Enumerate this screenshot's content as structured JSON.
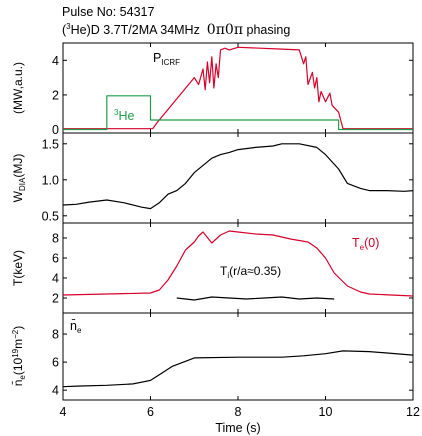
{
  "header": {
    "pulse_line": "Pulse No: 54317",
    "scenario_prefix": "(",
    "scenario_iso": "3",
    "scenario_rest": "He)D 3.7T/2MA 34MHz",
    "phasing_symbols": "0π0π",
    "phasing_word": "phasing"
  },
  "colors": {
    "red": "#d6002b",
    "green": "#1f9e4a",
    "black": "#000000"
  },
  "chart_data": [
    {
      "type": "line",
      "panel": "power",
      "ylabel": "(MW,a.u.)",
      "ylim": [
        -0.2,
        5.0
      ],
      "yticks": [
        0,
        2,
        4
      ],
      "xlim": [
        4,
        12
      ],
      "series": [
        {
          "name": "PICRF",
          "label_main": "P",
          "label_sub": "ICRF",
          "color": "red",
          "x": [
            4.0,
            6.05,
            6.15,
            7.0,
            7.1,
            7.2,
            7.25,
            7.3,
            7.35,
            7.4,
            7.45,
            7.5,
            7.55,
            7.6,
            7.7,
            7.8,
            8.0,
            8.5,
            9.0,
            9.4,
            9.5,
            9.55,
            9.6,
            9.7,
            9.75,
            9.8,
            9.85,
            9.9,
            10.0,
            10.1,
            10.15,
            10.3,
            10.4,
            12.0
          ],
          "y": [
            0.05,
            0.05,
            0.4,
            3.0,
            2.6,
            3.5,
            2.3,
            3.9,
            2.7,
            4.2,
            2.4,
            3.8,
            3.0,
            4.6,
            4.7,
            4.6,
            4.75,
            4.7,
            4.65,
            4.6,
            3.8,
            4.2,
            2.6,
            3.3,
            2.4,
            3.0,
            1.6,
            2.2,
            1.6,
            2.1,
            1.4,
            1.0,
            0.05,
            0.05
          ]
        },
        {
          "name": "3He",
          "label_iso": "3",
          "label_main": "He",
          "color": "green",
          "x": [
            4.0,
            5.0,
            5.0,
            6.0,
            6.0,
            10.3,
            10.3,
            12.0
          ],
          "y": [
            0.0,
            0.0,
            1.95,
            1.95,
            0.55,
            0.55,
            0.0,
            0.0
          ]
        }
      ]
    },
    {
      "type": "line",
      "panel": "wdia",
      "ylabel": "W_DIA(MJ)",
      "ylim": [
        0.4,
        1.65
      ],
      "yticks": [
        0.5,
        1.0,
        1.5
      ],
      "ytick_labels": [
        "0.5",
        "1.0",
        "1.5"
      ],
      "xlim": [
        4,
        12
      ],
      "series": [
        {
          "name": "WDIA",
          "color": "black",
          "x": [
            4.0,
            4.3,
            4.6,
            5.0,
            5.4,
            5.8,
            6.0,
            6.2,
            6.4,
            6.6,
            6.8,
            7.0,
            7.2,
            7.4,
            7.6,
            7.8,
            8.0,
            8.4,
            8.8,
            9.0,
            9.4,
            9.8,
            10.0,
            10.3,
            10.5,
            10.8,
            11.0,
            11.4,
            11.8,
            12.0
          ],
          "y": [
            0.65,
            0.66,
            0.69,
            0.72,
            0.68,
            0.62,
            0.6,
            0.68,
            0.8,
            0.85,
            0.95,
            1.1,
            1.2,
            1.3,
            1.35,
            1.38,
            1.42,
            1.45,
            1.47,
            1.5,
            1.5,
            1.45,
            1.35,
            1.15,
            0.95,
            0.88,
            0.85,
            0.85,
            0.84,
            0.85
          ]
        }
      ]
    },
    {
      "type": "line",
      "panel": "temperature",
      "ylabel": "T(keV)",
      "ylim": [
        0.5,
        9.5
      ],
      "yticks": [
        2,
        4,
        6,
        8
      ],
      "xlim": [
        4,
        12
      ],
      "series": [
        {
          "name": "Te(0)",
          "label_main": "T",
          "label_sub": "e",
          "label_tail": "(0)",
          "color": "red",
          "x": [
            4.0,
            5.0,
            6.0,
            6.2,
            6.4,
            6.6,
            6.8,
            7.0,
            7.1,
            7.2,
            7.4,
            7.6,
            7.8,
            8.0,
            8.4,
            8.8,
            9.2,
            9.6,
            9.8,
            10.0,
            10.2,
            10.5,
            10.8,
            11.0,
            11.5,
            12.0
          ],
          "y": [
            2.3,
            2.4,
            2.5,
            2.8,
            3.8,
            5.2,
            6.8,
            7.6,
            8.2,
            8.6,
            7.5,
            8.3,
            8.7,
            8.6,
            8.4,
            8.3,
            7.9,
            7.6,
            7.0,
            6.0,
            4.5,
            3.2,
            2.6,
            2.4,
            2.3,
            2.2
          ]
        },
        {
          "name": "Ti(r/a≈0.35)",
          "label_main": "T",
          "label_sub": "i",
          "label_tail": "(r/a≈0.35)",
          "color": "black",
          "x": [
            6.6,
            7.0,
            7.4,
            7.8,
            8.2,
            8.6,
            9.0,
            9.4,
            9.8,
            10.2
          ],
          "y": [
            2.0,
            1.8,
            2.1,
            2.0,
            1.9,
            2.0,
            2.1,
            1.9,
            2.0,
            1.9
          ]
        }
      ]
    },
    {
      "type": "line",
      "panel": "density",
      "ylabel": "n̄e(10¹⁹m⁻²)",
      "ylim": [
        3.3,
        9.5
      ],
      "yticks": [
        4,
        6,
        8
      ],
      "xlim": [
        4,
        12
      ],
      "xticks": [
        4,
        6,
        8,
        10,
        12
      ],
      "xlabel": "Time (s)",
      "series": [
        {
          "name": "ne-bar",
          "label_main": "n̄",
          "label_sub": "e",
          "color": "black",
          "x": [
            4.0,
            4.4,
            5.0,
            5.6,
            6.0,
            6.2,
            6.5,
            7.0,
            8.0,
            9.0,
            9.5,
            10.0,
            10.4,
            11.0,
            12.0
          ],
          "y": [
            4.25,
            4.3,
            4.35,
            4.45,
            4.7,
            5.1,
            5.7,
            6.3,
            6.35,
            6.35,
            6.45,
            6.6,
            6.8,
            6.75,
            6.5
          ]
        }
      ]
    }
  ]
}
